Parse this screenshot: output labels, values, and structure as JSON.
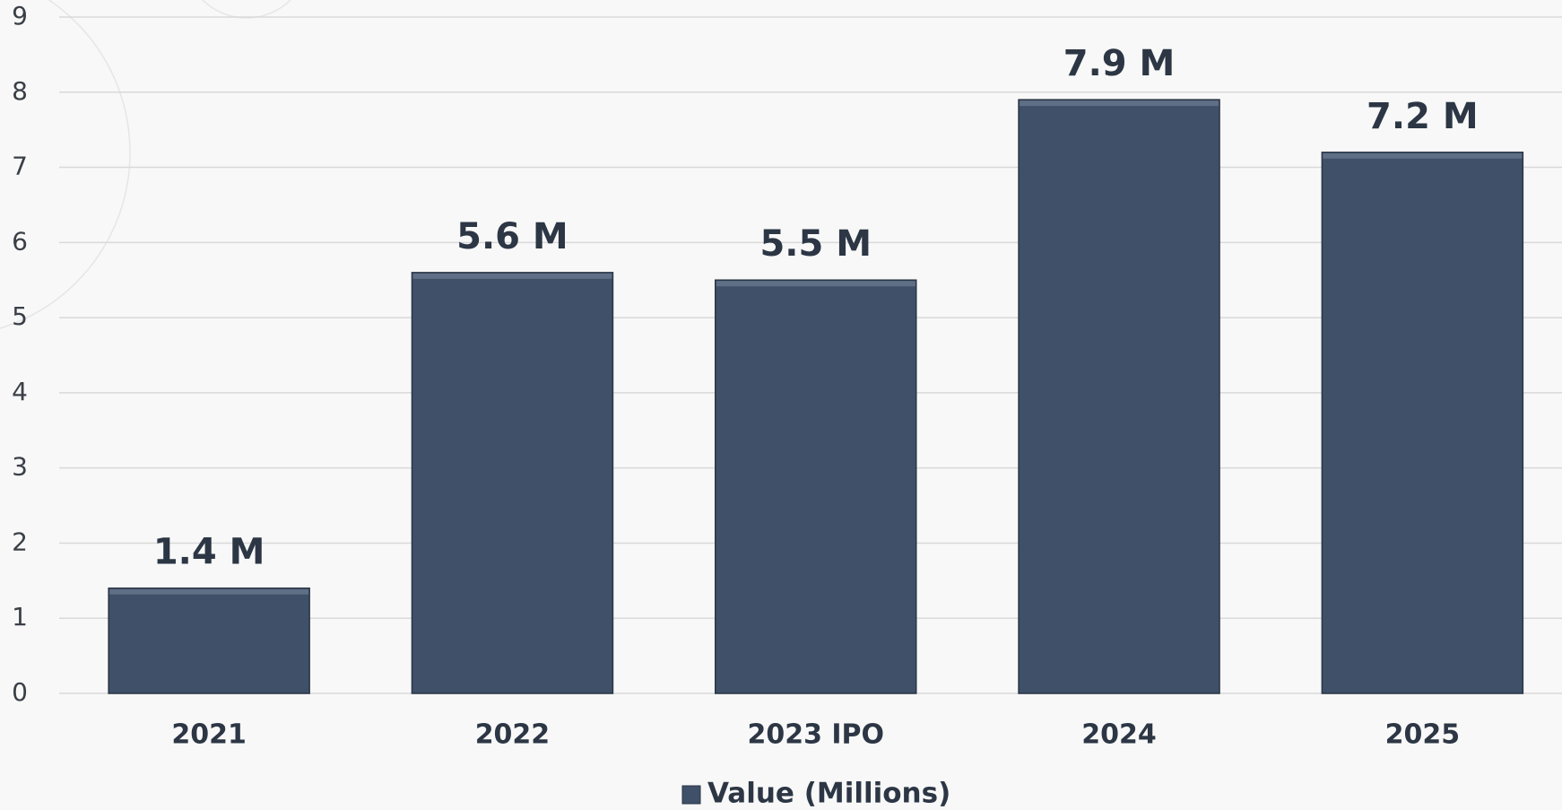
{
  "chart_data": {
    "type": "bar",
    "categories": [
      "2021",
      "2022",
      "2023 IPO",
      "2024",
      "2025"
    ],
    "series": [
      {
        "name": "Value (Millions)",
        "color": "#3f5068",
        "values": [
          1.4,
          5.6,
          5.5,
          7.9,
          7.2
        ],
        "value_labels": [
          "1.4 M",
          "5.6 M",
          "5.5 M",
          "7.9 M",
          "7.2 M"
        ]
      }
    ],
    "ylim": [
      0,
      9
    ],
    "yticks": [
      0,
      1,
      2,
      3,
      4,
      5,
      6,
      7,
      8,
      9
    ],
    "grid": true,
    "legend": "bottom"
  }
}
